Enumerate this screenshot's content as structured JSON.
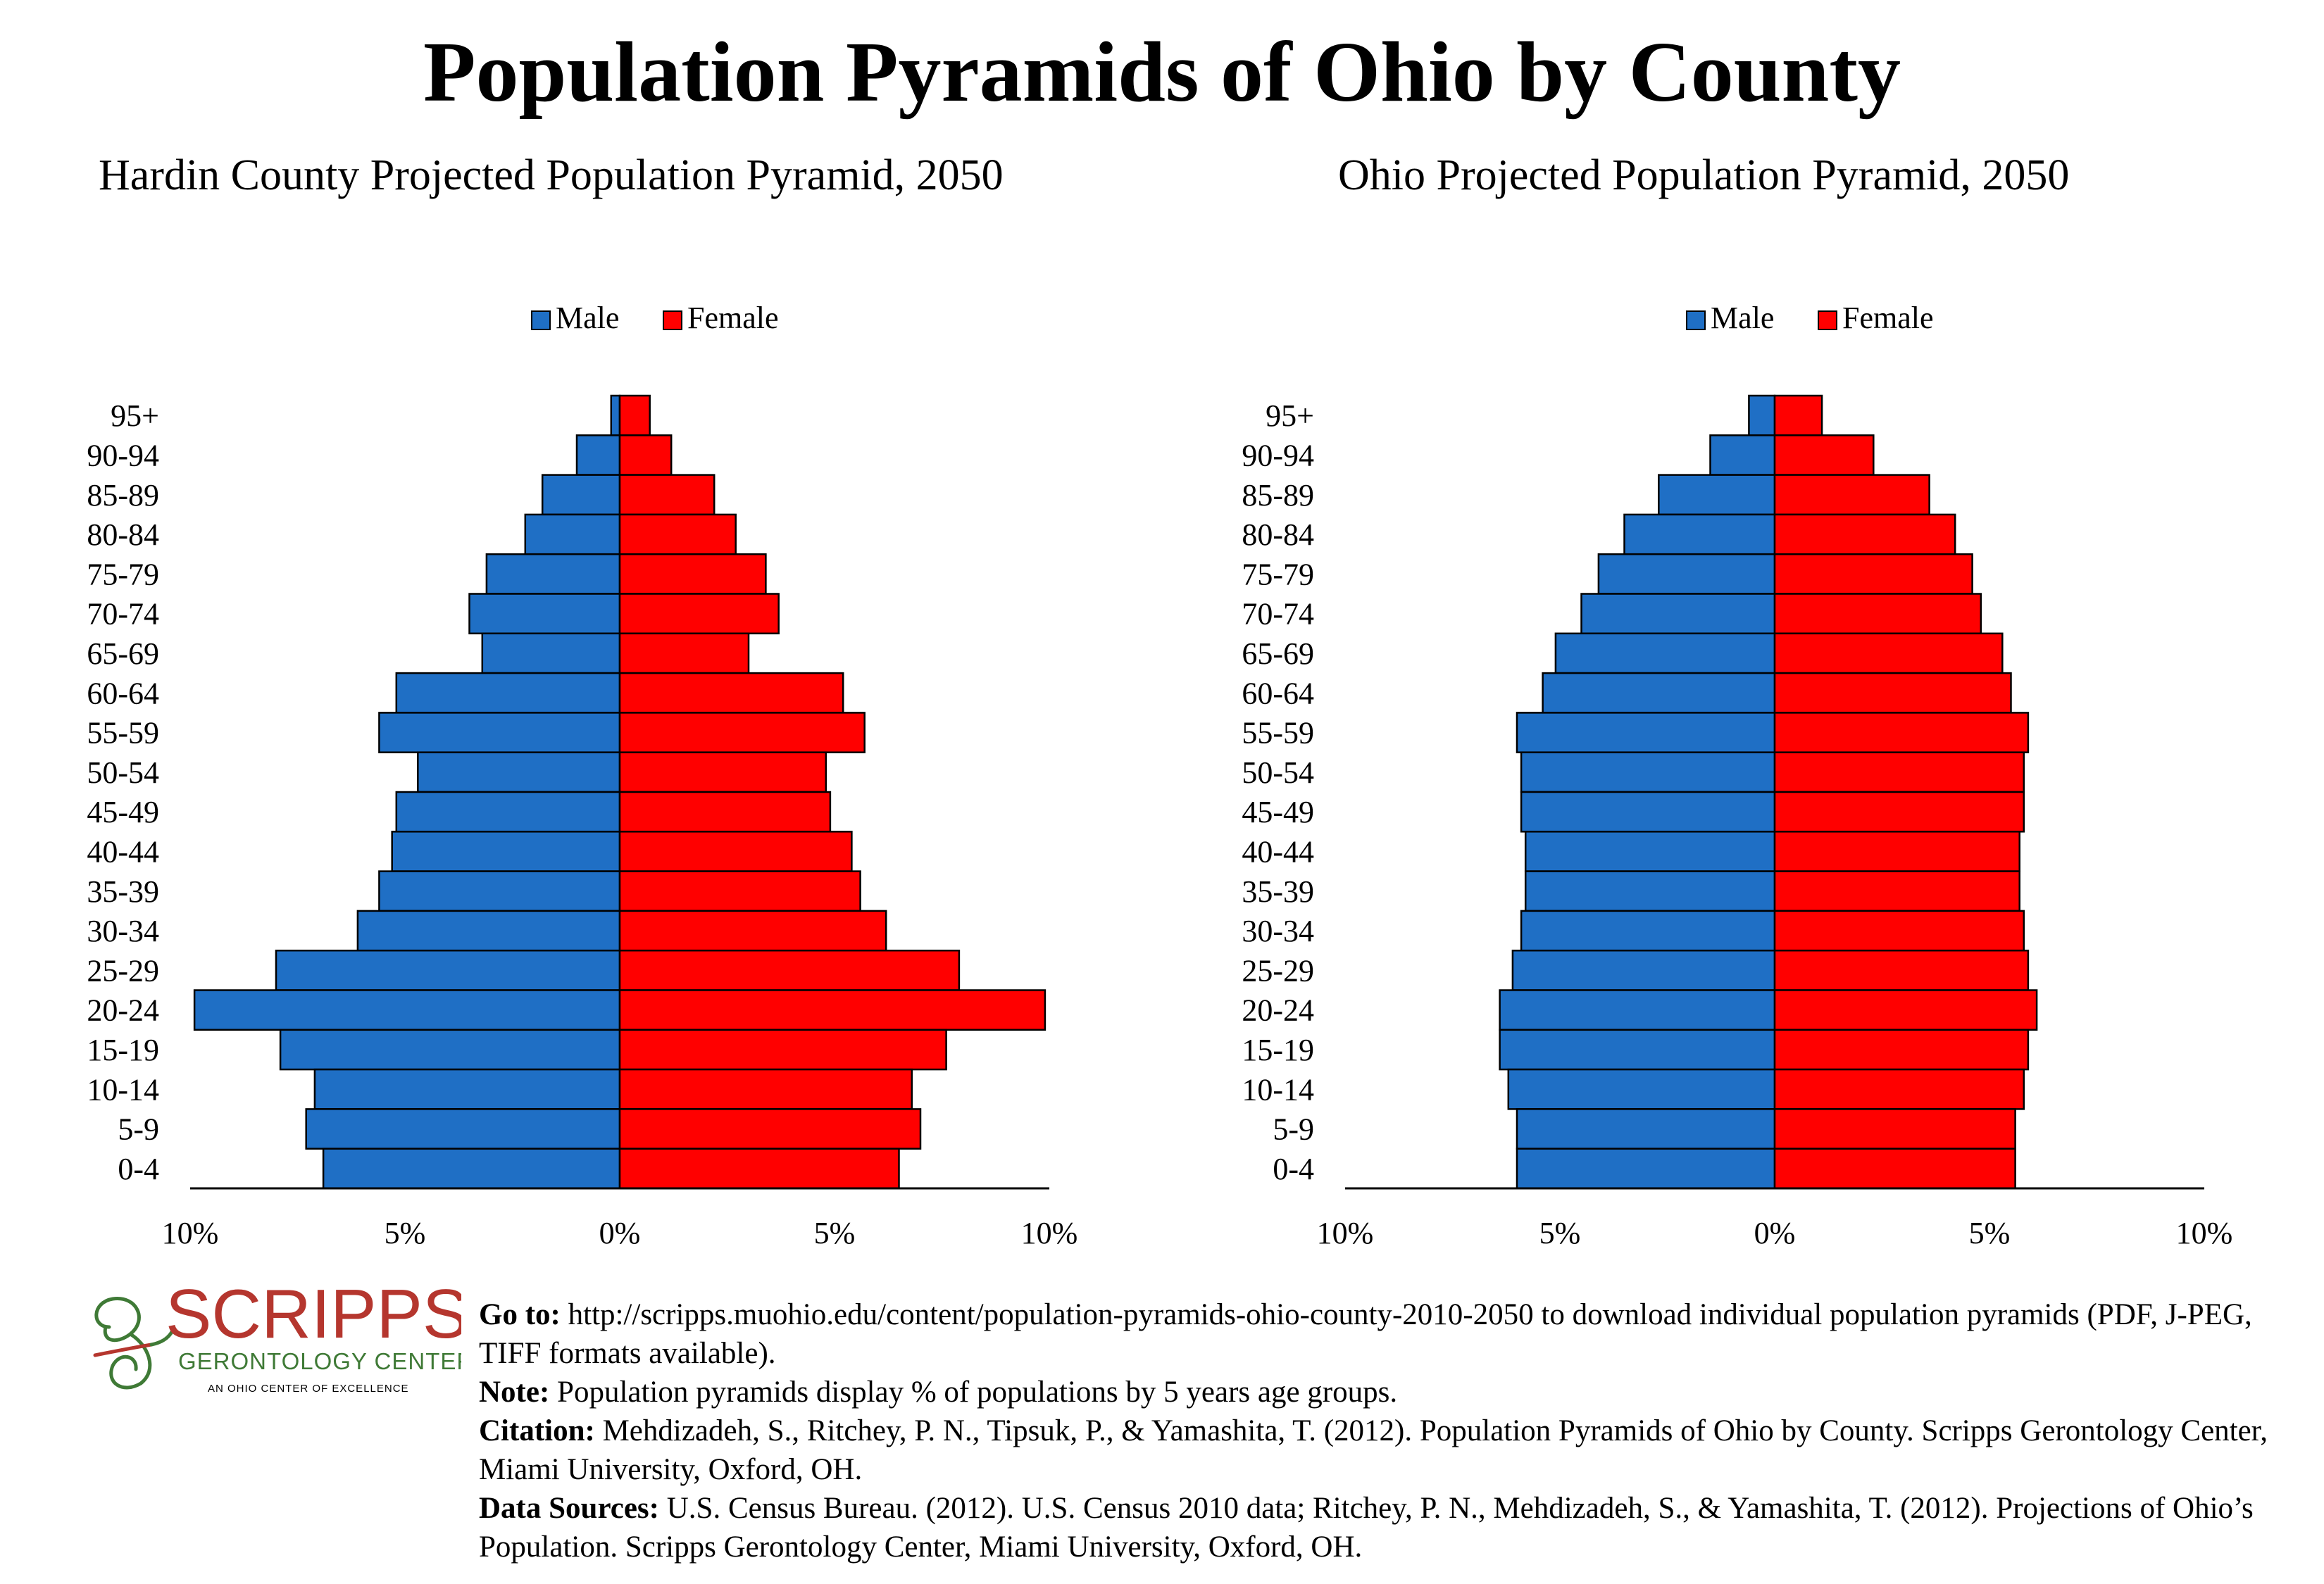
{
  "main_title": "Population Pyramids of Ohio by County",
  "colors": {
    "male": "#1F6FC5",
    "female": "#FF0000",
    "logo_red": "#B5362E",
    "logo_green": "#3F7A36",
    "axis": "#000000"
  },
  "logo": {
    "name": "SCRIPPS",
    "subtitle": "GERONTOLOGY CENTER",
    "tagline": "AN OHIO CENTER OF EXCELLENCE"
  },
  "footer": {
    "goto_label": "Go to:",
    "goto_text": "http://scripps.muohio.edu/content/population-pyramids-ohio-county-2010-2050 to download individual population pyramids (PDF, J-PEG, TIFF formats available).",
    "note_label": "Note:",
    "note_text": "Population pyramids display % of populations by 5 years age groups.",
    "citation_label": "Citation:",
    "citation_text": "Mehdizadeh, S., Ritchey, P. N., Tipsuk, P., & Yamashita, T. (2012). Population Pyramids of Ohio by County. Scripps Gerontology Center, Miami University, Oxford, OH.",
    "sources_label": "Data Sources:",
    "sources_text": "U.S. Census Bureau. (2012). U.S. Census 2010 data; Ritchey, P. N., Mehdizadeh, S., & Yamashita, T. (2012). Projections of Ohio’s Population. Scripps Gerontology Center, Miami University, Oxford, OH."
  },
  "chart_data": [
    {
      "type": "bar",
      "orientation": "horizontal-pyramid",
      "title": "Hardin County Projected Population Pyramid, 2050",
      "categories": [
        "95+",
        "90-94",
        "85-89",
        "80-84",
        "75-79",
        "70-74",
        "65-69",
        "60-64",
        "55-59",
        "50-54",
        "45-49",
        "40-44",
        "35-39",
        "30-34",
        "25-29",
        "20-24",
        "15-19",
        "10-14",
        "5-9",
        "0-4"
      ],
      "series": [
        {
          "name": "Male",
          "values": [
            0.2,
            1.0,
            1.8,
            2.2,
            3.1,
            3.5,
            3.2,
            5.2,
            5.6,
            4.7,
            5.2,
            5.3,
            5.6,
            6.1,
            8.0,
            9.9,
            7.9,
            7.1,
            7.3,
            6.9
          ]
        },
        {
          "name": "Female",
          "values": [
            0.7,
            1.2,
            2.2,
            2.7,
            3.4,
            3.7,
            3.0,
            5.2,
            5.7,
            4.8,
            4.9,
            5.4,
            5.6,
            6.2,
            7.9,
            9.9,
            7.6,
            6.8,
            7.0,
            6.5
          ]
        }
      ],
      "x_ticks": [
        "10%",
        "5%",
        "0%",
        "5%",
        "10%"
      ],
      "xlim": [
        -10,
        10
      ],
      "unit": "%",
      "legend": "top-center"
    },
    {
      "type": "bar",
      "orientation": "horizontal-pyramid",
      "title": "Ohio Projected Population Pyramid, 2050",
      "categories": [
        "95+",
        "90-94",
        "85-89",
        "80-84",
        "75-79",
        "70-74",
        "65-69",
        "60-64",
        "55-59",
        "50-54",
        "45-49",
        "40-44",
        "35-39",
        "30-34",
        "25-29",
        "20-24",
        "15-19",
        "10-14",
        "5-9",
        "0-4"
      ],
      "series": [
        {
          "name": "Male",
          "values": [
            0.6,
            1.5,
            2.7,
            3.5,
            4.1,
            4.5,
            5.1,
            5.4,
            6.0,
            5.9,
            5.9,
            5.8,
            5.8,
            5.9,
            6.1,
            6.4,
            6.4,
            6.2,
            6.0,
            6.0
          ]
        },
        {
          "name": "Female",
          "values": [
            1.1,
            2.3,
            3.6,
            4.2,
            4.6,
            4.8,
            5.3,
            5.5,
            5.9,
            5.8,
            5.8,
            5.7,
            5.7,
            5.8,
            5.9,
            6.1,
            5.9,
            5.8,
            5.6,
            5.6
          ]
        }
      ],
      "x_ticks": [
        "10%",
        "5%",
        "0%",
        "5%",
        "10%"
      ],
      "xlim": [
        -10,
        10
      ],
      "unit": "%",
      "legend": "top-center"
    }
  ]
}
